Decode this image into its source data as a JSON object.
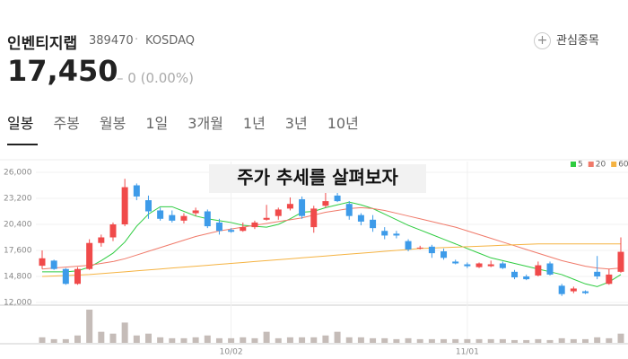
{
  "header": {
    "name": "인벤티지랩",
    "code": "389470",
    "market": "KOSDAQ",
    "watch": "관심종목",
    "price": "17,450",
    "change": "0 (0.00%)"
  },
  "tabs": [
    "일봉",
    "주봉",
    "월봉",
    "1일",
    "3개월",
    "1년",
    "3년",
    "10년"
  ],
  "chart_data": {
    "type": "candlestick",
    "title": "주가 추세를 살펴보자",
    "up_color": "#f04a4a",
    "down_color": "#3d9be9",
    "volume_color": "#c5bcb8",
    "ylim": [
      12000,
      26000
    ],
    "yticks": [
      {
        "value": 12000,
        "label": "12,000"
      },
      {
        "value": 14800,
        "label": "14,800"
      },
      {
        "value": 17600,
        "label": "17,600"
      },
      {
        "value": 20400,
        "label": "20,400"
      },
      {
        "value": 23200,
        "label": "23,200"
      },
      {
        "value": 26000,
        "label": "26,000"
      }
    ],
    "categories": [
      null,
      null,
      null,
      null,
      null,
      null,
      null,
      null,
      null,
      null,
      null,
      null,
      null,
      null,
      null,
      null,
      "10/02",
      null,
      null,
      null,
      null,
      null,
      null,
      null,
      null,
      null,
      null,
      null,
      null,
      null,
      null,
      null,
      null,
      null,
      null,
      null,
      "11/01",
      null,
      null,
      null,
      null,
      null,
      null,
      null,
      null,
      null,
      null,
      null,
      null,
      null
    ],
    "open": [
      15950,
      16500,
      15600,
      14000,
      15600,
      18400,
      19000,
      20400,
      24600,
      23000,
      21900,
      21400,
      20800,
      21600,
      21800,
      20600,
      19800,
      19700,
      20100,
      20900,
      21300,
      22100,
      23100,
      20100,
      22400,
      23500,
      22600,
      21400,
      20900,
      19700,
      19400,
      18600,
      17800,
      18000,
      17500,
      16400,
      16100,
      15800,
      15900,
      16200,
      15300,
      14800,
      14900,
      16200,
      13800,
      13200,
      13200,
      15300,
      14000,
      15300
    ],
    "high": [
      17600,
      16600,
      15700,
      15800,
      18800,
      19300,
      20600,
      25300,
      24800,
      23500,
      22200,
      21900,
      21600,
      22200,
      22000,
      21000,
      20000,
      20600,
      20800,
      22500,
      22200,
      23300,
      23400,
      22400,
      25200,
      23800,
      22900,
      21600,
      21400,
      20100,
      19700,
      18800,
      18100,
      18200,
      17800,
      16600,
      16300,
      16300,
      16500,
      16400,
      15500,
      15000,
      16400,
      16400,
      14000,
      13700,
      13300,
      17000,
      15600,
      19000
    ],
    "low": [
      15600,
      15500,
      13900,
      13900,
      15500,
      18000,
      18600,
      20200,
      23000,
      21000,
      20800,
      20600,
      20500,
      21300,
      20000,
      19300,
      19500,
      19600,
      19900,
      20800,
      20900,
      21900,
      21000,
      19500,
      22200,
      22800,
      20900,
      20300,
      19600,
      18800,
      18900,
      17500,
      17700,
      16800,
      16600,
      16100,
      15700,
      15700,
      15800,
      15600,
      14500,
      14400,
      14800,
      14900,
      12700,
      13000,
      12900,
      14500,
      13900,
      15200
    ],
    "close": [
      16750,
      15600,
      14000,
      15600,
      18400,
      19000,
      20400,
      24400,
      23400,
      21800,
      21000,
      20800,
      21300,
      21900,
      20200,
      19700,
      19600,
      20100,
      20600,
      21100,
      22000,
      22600,
      21300,
      22100,
      22900,
      22900,
      21300,
      20700,
      20000,
      19200,
      19200,
      17700,
      17900,
      17300,
      16800,
      16200,
      15900,
      16200,
      16100,
      15700,
      14700,
      14500,
      16000,
      15000,
      12900,
      13500,
      13000,
      14800,
      15000,
      17450
    ],
    "volume": [
      6,
      4,
      4,
      8,
      36,
      12,
      10,
      22,
      8,
      10,
      6,
      5,
      5,
      6,
      8,
      5,
      5,
      6,
      5,
      12,
      5,
      6,
      6,
      6,
      8,
      12,
      6,
      6,
      5,
      5,
      4,
      5,
      4,
      4,
      4,
      4,
      4,
      4,
      4,
      4,
      3,
      3,
      4,
      3,
      5,
      4,
      4,
      6,
      5,
      10
    ],
    "series": [
      {
        "name": "5",
        "color": "#2ecc40",
        "values": [
          15300,
          15300,
          15300,
          15400,
          15800,
          16500,
          17300,
          18500,
          20200,
          21500,
          22300,
          22300,
          21800,
          21300,
          21000,
          20800,
          20600,
          20300,
          20200,
          20100,
          20400,
          21000,
          21700,
          21800,
          22200,
          22500,
          22800,
          22500,
          22100,
          21500,
          20900,
          20300,
          19800,
          19300,
          18800,
          18300,
          17800,
          17300,
          16800,
          16500,
          16200,
          15900,
          15600,
          15300,
          15000,
          14500,
          14000,
          13700,
          14200,
          15000
        ]
      },
      {
        "name": "20",
        "color": "#f07a6a",
        "values": [
          15600,
          15700,
          15800,
          15900,
          16000,
          16200,
          16400,
          16700,
          17100,
          17500,
          17900,
          18300,
          18700,
          19100,
          19400,
          19700,
          19900,
          20100,
          20300,
          20500,
          20700,
          20900,
          21100,
          21400,
          21700,
          21900,
          22100,
          22200,
          22100,
          21900,
          21600,
          21300,
          21000,
          20700,
          20400,
          20100,
          19700,
          19300,
          18900,
          18500,
          18100,
          17700,
          17300,
          16900,
          16500,
          16200,
          15900,
          15700,
          15600,
          15700
        ]
      },
      {
        "name": "60",
        "color": "#f5b342",
        "values": [
          14800,
          14850,
          14900,
          14950,
          15000,
          15100,
          15200,
          15300,
          15400,
          15500,
          15600,
          15700,
          15800,
          15900,
          16000,
          16100,
          16200,
          16300,
          16400,
          16500,
          16600,
          16700,
          16800,
          16900,
          17000,
          17100,
          17200,
          17300,
          17400,
          17500,
          17600,
          17700,
          17800,
          17850,
          17900,
          17950,
          18000,
          18050,
          18100,
          18150,
          18200,
          18250,
          18300,
          18300,
          18300,
          18300,
          18300,
          18300,
          18300,
          18300
        ]
      }
    ]
  }
}
